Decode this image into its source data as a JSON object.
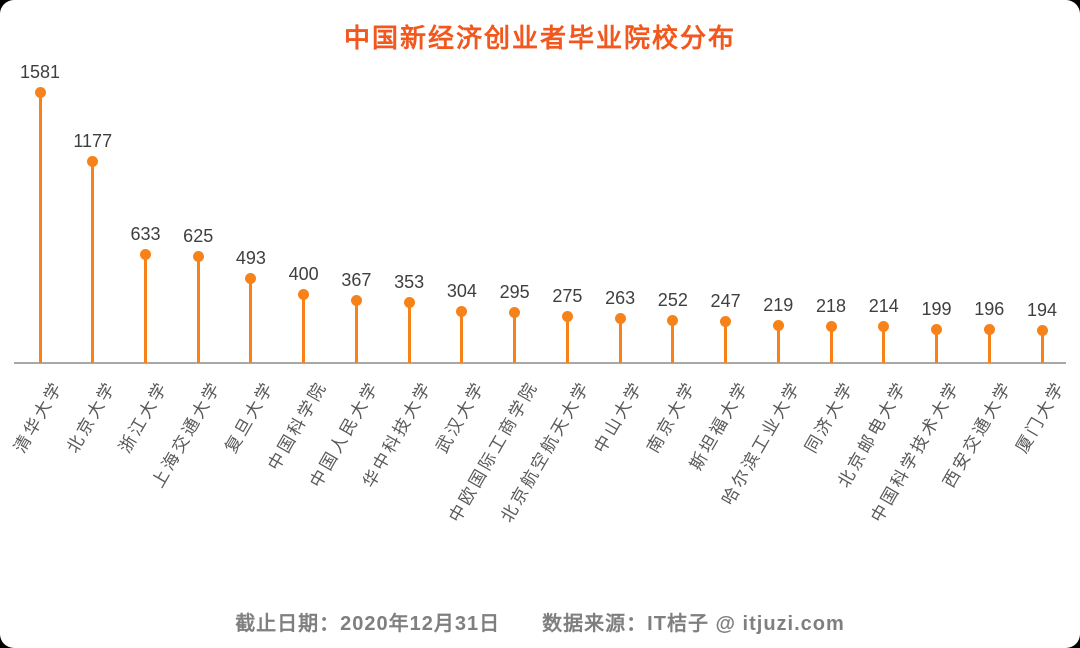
{
  "title": "中国新经济创业者毕业院校分布",
  "footer": {
    "date": "截止日期：2020年12月31日",
    "source": "数据来源：IT桔子 @ itjuzi.com"
  },
  "colors": {
    "title": "#f2571d",
    "stem": "#f8821a",
    "value_label": "#3f3f3f",
    "category_label": "#595959",
    "axis": "#a8a8a8",
    "footer": "#7f7f7f",
    "background": "#ffffff"
  },
  "chart_data": {
    "type": "bar",
    "variant": "lollipop",
    "title": "中国新经济创业者毕业院校分布",
    "categories": [
      "清华大学",
      "北京大学",
      "浙江大学",
      "上海交通大学",
      "复旦大学",
      "中国科学院",
      "中国人民大学",
      "华中科技大学",
      "武汉大学",
      "中欧国际工商学院",
      "北京航空航天大学",
      "中山大学",
      "南京大学",
      "斯坦福大学",
      "哈尔滨工业大学",
      "同济大学",
      "北京邮电大学",
      "中国科学技术大学",
      "西安交通大学",
      "厦门大学"
    ],
    "values": [
      1581,
      1177,
      633,
      625,
      493,
      400,
      367,
      353,
      304,
      295,
      275,
      263,
      252,
      247,
      219,
      218,
      214,
      199,
      196,
      194
    ],
    "xlabel": "",
    "ylabel": "",
    "ylim": [
      0,
      1650
    ],
    "grid": false,
    "legend": false,
    "data_labels": true,
    "category_label_rotation_deg": -60
  }
}
